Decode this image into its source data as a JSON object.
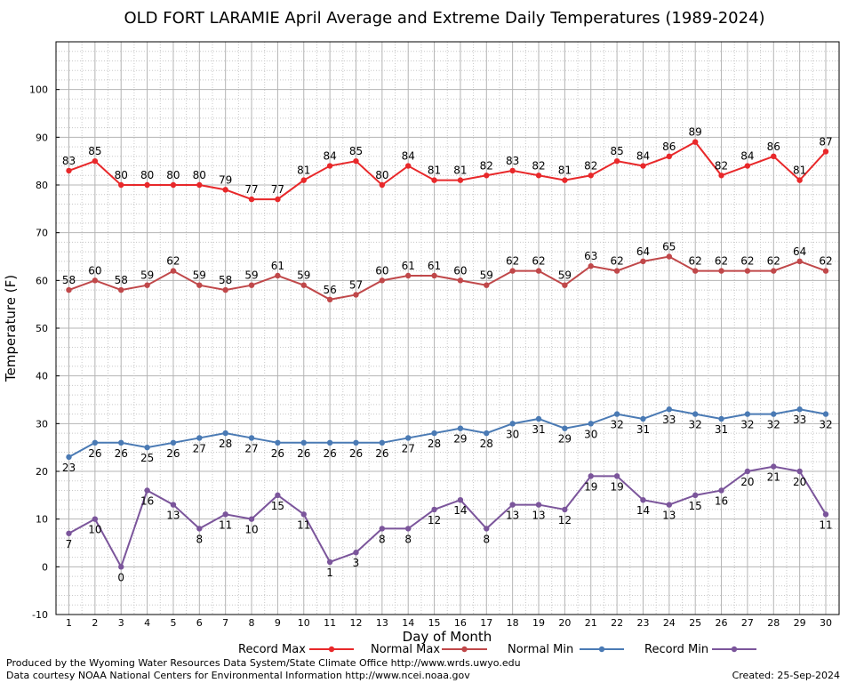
{
  "chart_data": {
    "type": "line",
    "title": "OLD FORT LARAMIE April Average and Extreme Daily Temperatures (1989-2024)",
    "xlabel": "Day of Month",
    "ylabel": "Temperature (F)",
    "ylim": [
      -10,
      110
    ],
    "yticks": [
      -10,
      0,
      10,
      20,
      30,
      40,
      50,
      60,
      70,
      80,
      90,
      100
    ],
    "x": [
      1,
      2,
      3,
      4,
      5,
      6,
      7,
      8,
      9,
      10,
      11,
      12,
      13,
      14,
      15,
      16,
      17,
      18,
      19,
      20,
      21,
      22,
      23,
      24,
      25,
      26,
      27,
      28,
      29,
      30
    ],
    "grid": true,
    "legend_position": "bottom",
    "series": [
      {
        "name": "Record Max",
        "color": "#e8282a",
        "label_pos": "above",
        "values": [
          83,
          85,
          80,
          80,
          80,
          80,
          79,
          77,
          77,
          81,
          84,
          85,
          80,
          84,
          81,
          81,
          82,
          83,
          82,
          81,
          82,
          85,
          84,
          86,
          89,
          82,
          84,
          86,
          81,
          87
        ]
      },
      {
        "name": "Normal Max",
        "color": "#c0484a",
        "label_pos": "above",
        "values": [
          58,
          60,
          58,
          59,
          62,
          59,
          58,
          59,
          61,
          59,
          56,
          57,
          60,
          61,
          61,
          60,
          59,
          62,
          62,
          59,
          63,
          62,
          64,
          65,
          62,
          62,
          62,
          62,
          64,
          62
        ]
      },
      {
        "name": "Normal Min",
        "color": "#4a7ab4",
        "label_pos": "below",
        "values": [
          23,
          26,
          26,
          25,
          26,
          27,
          28,
          27,
          26,
          26,
          26,
          26,
          26,
          27,
          28,
          29,
          28,
          30,
          31,
          29,
          30,
          32,
          31,
          33,
          32,
          31,
          32,
          32,
          33,
          32
        ]
      },
      {
        "name": "Record Min",
        "color": "#7b559b",
        "label_pos": "below",
        "values": [
          7,
          10,
          0,
          16,
          13,
          8,
          11,
          10,
          15,
          11,
          1,
          3,
          8,
          8,
          12,
          14,
          8,
          13,
          13,
          12,
          19,
          19,
          14,
          13,
          15,
          16,
          20,
          21,
          20,
          11
        ]
      }
    ]
  },
  "footer": {
    "produced_by": "Produced by the Wyoming Water Resources Data System/State Climate Office http://www.wrds.uwyo.edu",
    "courtesy": "Data courtesy NOAA National Centers for Environmental Information http://www.ncei.noaa.gov",
    "created": "Created: 25-Sep-2024"
  }
}
